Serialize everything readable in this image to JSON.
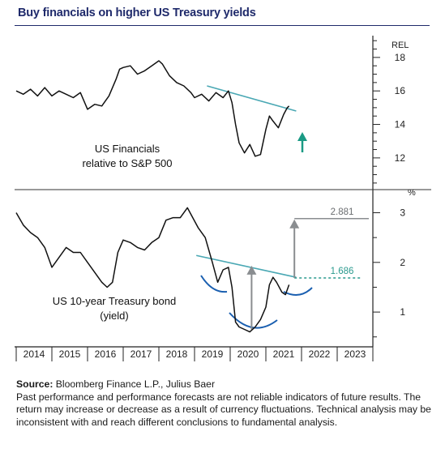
{
  "title": "Buy financials on higher US Treasury yields",
  "footer": {
    "source_label": "Source:",
    "source_text": " Bloomberg Finance L.P., Julius Baer",
    "disclaimer": "Past performance and performance forecasts are not reliable indicators of future results. The return may increase or decrease as a result of currency fluctuations. Technical analysis may be inconsistent with and reach different conclusions to fundamental analysis."
  },
  "colors": {
    "title": "#1f2a6b",
    "series": "#111111",
    "trendline": "#4aa8b4",
    "arrow_up": "#1a9a84",
    "projection": "#8a8d90",
    "target_low": "#2a9a8e"
  },
  "chart_data": [
    {
      "type": "line",
      "title": "",
      "series_label_line1": "US Financials",
      "series_label_line2": "relative to S&P 500",
      "ylabel": "REL",
      "ylim": [
        10.3,
        19.3
      ],
      "yticks": [
        12,
        14,
        16,
        18
      ],
      "xlim": [
        2014,
        2024
      ],
      "series": [
        {
          "x": [
            2014.0,
            2014.2,
            2014.4,
            2014.6,
            2014.8,
            2015.0,
            2015.2,
            2015.4,
            2015.6,
            2015.8,
            2016.0,
            2016.2,
            2016.4,
            2016.6,
            2016.8,
            2016.9,
            2017.0,
            2017.2,
            2017.4,
            2017.6,
            2017.8,
            2018.0,
            2018.1,
            2018.3,
            2018.5,
            2018.7,
            2018.9,
            2019.0,
            2019.2,
            2019.4,
            2019.6,
            2019.8,
            2019.95,
            2020.05,
            2020.15,
            2020.25,
            2020.4,
            2020.55,
            2020.7,
            2020.85,
            2021.0,
            2021.1,
            2021.2,
            2021.35,
            2021.5,
            2021.6,
            2021.65
          ],
          "values": [
            16.0,
            15.8,
            16.1,
            15.7,
            16.2,
            15.7,
            16.0,
            15.8,
            15.6,
            15.9,
            14.9,
            15.2,
            15.1,
            15.7,
            16.7,
            17.3,
            17.4,
            17.5,
            17.0,
            17.2,
            17.5,
            17.8,
            17.6,
            16.9,
            16.5,
            16.3,
            15.9,
            15.6,
            15.8,
            15.4,
            15.9,
            15.6,
            16.0,
            15.3,
            14.0,
            12.9,
            12.3,
            12.8,
            12.1,
            12.2,
            13.7,
            14.5,
            14.2,
            13.8,
            14.6,
            15.0,
            15.1
          ]
        }
      ],
      "annotations": {
        "trendline": [
          [
            2019.35,
            16.3
          ],
          [
            2021.85,
            14.8
          ]
        ]
      }
    },
    {
      "type": "line",
      "title": "",
      "series_label_line1": "US 10-year Treasury bond",
      "series_label_line2": "(yield)",
      "ylabel": "%",
      "ylim": [
        0.3,
        3.4
      ],
      "yticks": [
        1,
        2,
        3
      ],
      "xlim": [
        2014,
        2024
      ],
      "xticks": [
        "2014",
        "2015",
        "2016",
        "2017",
        "2018",
        "2019",
        "2020",
        "2021",
        "2022",
        "2023"
      ],
      "series": [
        {
          "x": [
            2014.0,
            2014.2,
            2014.4,
            2014.6,
            2014.8,
            2015.0,
            2015.2,
            2015.4,
            2015.6,
            2015.8,
            2016.0,
            2016.2,
            2016.4,
            2016.55,
            2016.7,
            2016.85,
            2017.0,
            2017.2,
            2017.4,
            2017.6,
            2017.8,
            2018.0,
            2018.2,
            2018.4,
            2018.6,
            2018.8,
            2018.95,
            2019.1,
            2019.3,
            2019.5,
            2019.65,
            2019.8,
            2019.95,
            2020.05,
            2020.15,
            2020.25,
            2020.4,
            2020.55,
            2020.7,
            2020.85,
            2021.0,
            2021.1,
            2021.2,
            2021.3,
            2021.45,
            2021.55,
            2021.65
          ],
          "values": [
            3.0,
            2.75,
            2.6,
            2.5,
            2.3,
            1.9,
            2.1,
            2.3,
            2.2,
            2.2,
            2.0,
            1.8,
            1.6,
            1.5,
            1.6,
            2.2,
            2.45,
            2.4,
            2.3,
            2.25,
            2.4,
            2.5,
            2.85,
            2.9,
            2.9,
            3.1,
            2.9,
            2.7,
            2.5,
            2.0,
            1.6,
            1.85,
            1.9,
            1.5,
            0.8,
            0.7,
            0.65,
            0.6,
            0.7,
            0.85,
            1.1,
            1.55,
            1.7,
            1.6,
            1.4,
            1.35,
            1.55
          ]
        }
      ],
      "annotations": {
        "trendline": [
          [
            2019.05,
            2.14
          ],
          [
            2021.85,
            1.7
          ]
        ],
        "level_current": "1.686",
        "level_target": "2.881",
        "current_value": 1.686,
        "target_value": 2.881
      }
    }
  ]
}
